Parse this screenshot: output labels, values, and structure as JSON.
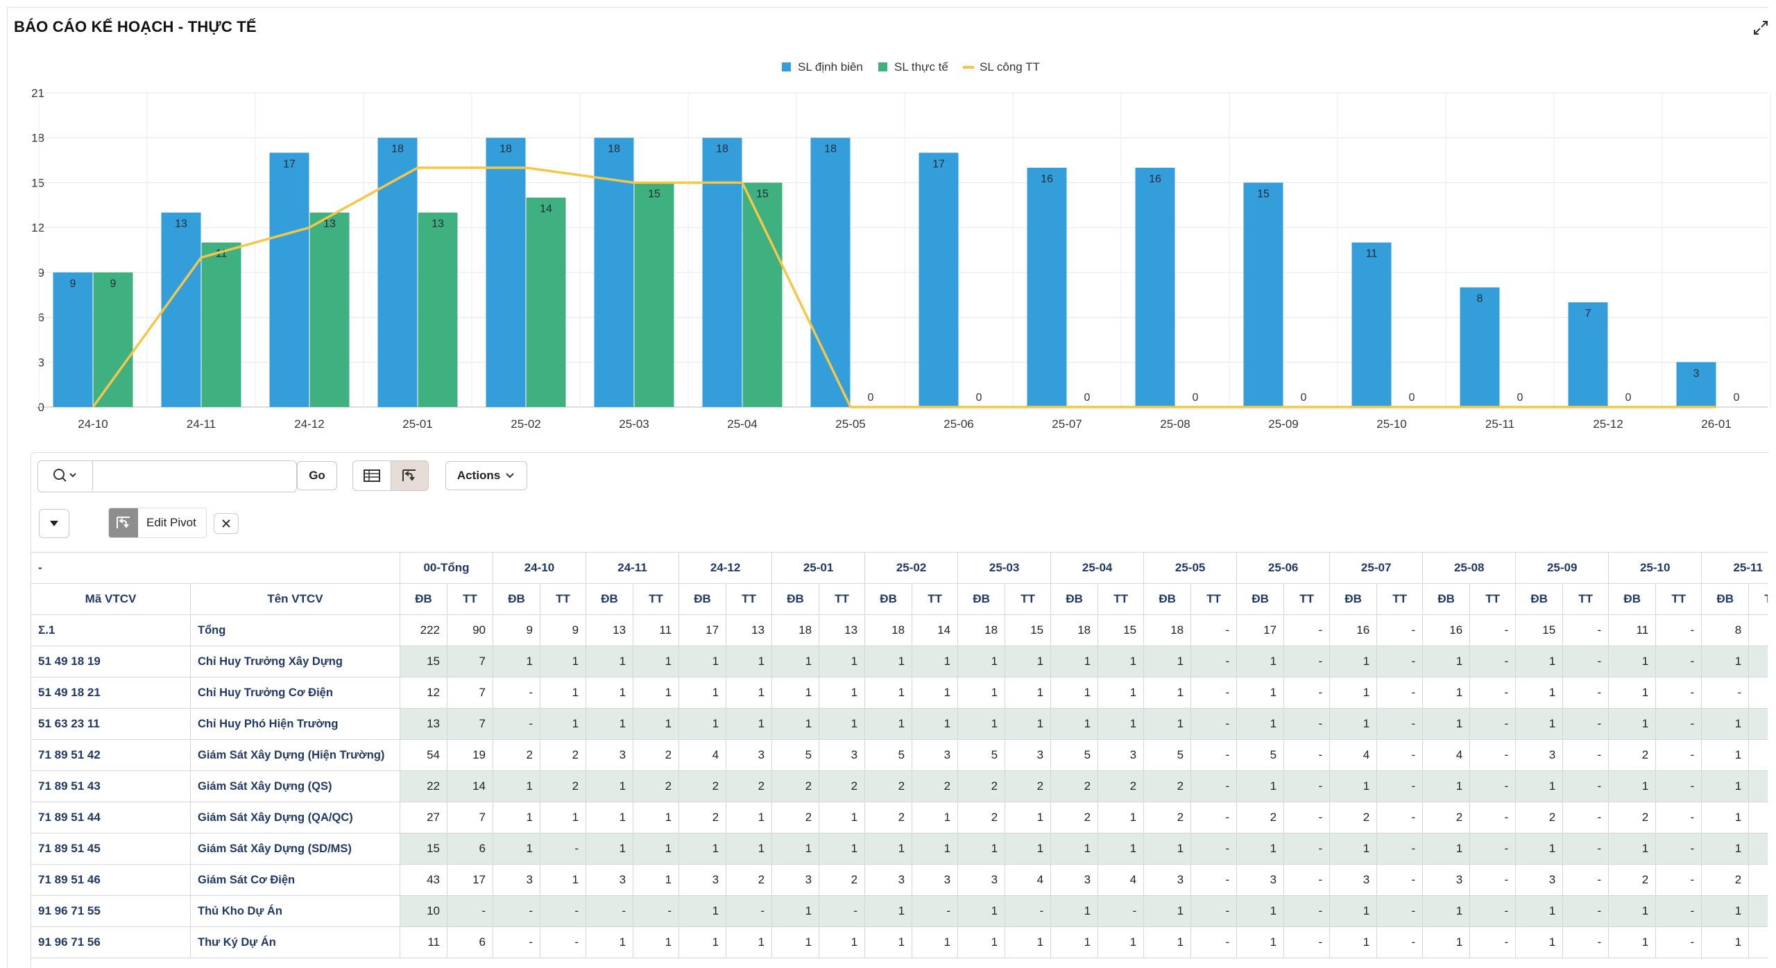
{
  "region": {
    "title": "BÁO CÁO KẾ HOẠCH - THỰC TẾ"
  },
  "colors": {
    "dinh_bien": "#349edb",
    "thuc_te": "#3fb07f",
    "cong_tt": "#f5c748",
    "header_text": "#203864",
    "row_shade": "#e3ebe7"
  },
  "chart_data": {
    "type": "bar",
    "categories": [
      "24-10",
      "24-11",
      "24-12",
      "25-01",
      "25-02",
      "25-03",
      "25-04",
      "25-05",
      "25-06",
      "25-07",
      "25-08",
      "25-09",
      "25-10",
      "25-11",
      "25-12",
      "26-01"
    ],
    "series": [
      {
        "name": "SL định biên",
        "type": "bar",
        "values": [
          9,
          13,
          17,
          18,
          18,
          18,
          18,
          18,
          17,
          16,
          16,
          15,
          11,
          8,
          7,
          3
        ]
      },
      {
        "name": "SL thực tế",
        "type": "bar",
        "values": [
          9,
          11,
          13,
          13,
          14,
          15,
          15,
          0,
          0,
          0,
          0,
          0,
          0,
          0,
          0,
          0
        ]
      },
      {
        "name": "SL công TT",
        "type": "line",
        "values": [
          0,
          10,
          12,
          16,
          16,
          15,
          15,
          0,
          0,
          0,
          0,
          0,
          0,
          0,
          0,
          0
        ]
      }
    ],
    "ylim": [
      0,
      21
    ],
    "yticks": [
      0,
      3,
      6,
      9,
      12,
      15,
      18,
      21
    ],
    "grid": true,
    "legend": "top-center"
  },
  "toolbar": {
    "search_icon": "search-icon",
    "search_placeholder": "",
    "go_label": "Go",
    "actions_label": "Actions",
    "pivot_chip_label": "Edit Pivot"
  },
  "table": {
    "corner_label": "-",
    "col_code": "Mã VTCV",
    "col_name": "Tên VTCV",
    "periods": [
      "00-Tổng",
      "24-10",
      "24-11",
      "24-12",
      "25-01",
      "25-02",
      "25-03",
      "25-04",
      "25-05",
      "25-06",
      "25-07",
      "25-08",
      "25-09",
      "25-10",
      "25-11"
    ],
    "sub_db": "ĐB",
    "sub_tt": "TT",
    "rows": [
      {
        "code": "Σ.1",
        "name": "Tổng",
        "values": [
          "222",
          "90",
          "9",
          "9",
          "13",
          "11",
          "17",
          "13",
          "18",
          "13",
          "18",
          "14",
          "18",
          "15",
          "18",
          "15",
          "18",
          "-",
          "17",
          "-",
          "16",
          "-",
          "16",
          "-",
          "15",
          "-",
          "11",
          "-",
          "8",
          ""
        ]
      },
      {
        "code": "51 49 18 19",
        "name": "Chỉ Huy Trưởng Xây Dựng",
        "values": [
          "15",
          "7",
          "1",
          "1",
          "1",
          "1",
          "1",
          "1",
          "1",
          "1",
          "1",
          "1",
          "1",
          "1",
          "1",
          "1",
          "1",
          "-",
          "1",
          "-",
          "1",
          "-",
          "1",
          "-",
          "1",
          "-",
          "1",
          "-",
          "1",
          ""
        ]
      },
      {
        "code": "51 49 18 21",
        "name": "Chỉ Huy Trưởng Cơ Điện",
        "values": [
          "12",
          "7",
          "-",
          "1",
          "1",
          "1",
          "1",
          "1",
          "1",
          "1",
          "1",
          "1",
          "1",
          "1",
          "1",
          "1",
          "1",
          "-",
          "1",
          "-",
          "1",
          "-",
          "1",
          "-",
          "1",
          "-",
          "1",
          "-",
          "-",
          ""
        ]
      },
      {
        "code": "51 63 23 11",
        "name": "Chỉ Huy Phó Hiện Trường",
        "values": [
          "13",
          "7",
          "-",
          "1",
          "1",
          "1",
          "1",
          "1",
          "1",
          "1",
          "1",
          "1",
          "1",
          "1",
          "1",
          "1",
          "1",
          "-",
          "1",
          "-",
          "1",
          "-",
          "1",
          "-",
          "1",
          "-",
          "1",
          "-",
          "1",
          ""
        ]
      },
      {
        "code": "71 89 51 42",
        "name": "Giám Sát Xây Dựng (Hiện Trường)",
        "values": [
          "54",
          "19",
          "2",
          "2",
          "3",
          "2",
          "4",
          "3",
          "5",
          "3",
          "5",
          "3",
          "5",
          "3",
          "5",
          "3",
          "5",
          "-",
          "5",
          "-",
          "4",
          "-",
          "4",
          "-",
          "3",
          "-",
          "2",
          "-",
          "1",
          ""
        ]
      },
      {
        "code": "71 89 51 43",
        "name": "Giám Sát Xây Dựng (QS)",
        "values": [
          "22",
          "14",
          "1",
          "2",
          "1",
          "2",
          "2",
          "2",
          "2",
          "2",
          "2",
          "2",
          "2",
          "2",
          "2",
          "2",
          "2",
          "-",
          "1",
          "-",
          "1",
          "-",
          "1",
          "-",
          "1",
          "-",
          "1",
          "-",
          "1",
          ""
        ]
      },
      {
        "code": "71 89 51 44",
        "name": "Giám Sát Xây Dựng (QA/QC)",
        "values": [
          "27",
          "7",
          "1",
          "1",
          "1",
          "1",
          "2",
          "1",
          "2",
          "1",
          "2",
          "1",
          "2",
          "1",
          "2",
          "1",
          "2",
          "-",
          "2",
          "-",
          "2",
          "-",
          "2",
          "-",
          "2",
          "-",
          "2",
          "-",
          "1",
          ""
        ]
      },
      {
        "code": "71 89 51 45",
        "name": "Giám Sát Xây Dựng (SD/MS)",
        "values": [
          "15",
          "6",
          "1",
          "-",
          "1",
          "1",
          "1",
          "1",
          "1",
          "1",
          "1",
          "1",
          "1",
          "1",
          "1",
          "1",
          "1",
          "-",
          "1",
          "-",
          "1",
          "-",
          "1",
          "-",
          "1",
          "-",
          "1",
          "-",
          "1",
          ""
        ]
      },
      {
        "code": "71 89 51 46",
        "name": "Giám Sát Cơ Điện",
        "values": [
          "43",
          "17",
          "3",
          "1",
          "3",
          "1",
          "3",
          "2",
          "3",
          "2",
          "3",
          "3",
          "3",
          "4",
          "3",
          "4",
          "3",
          "-",
          "3",
          "-",
          "3",
          "-",
          "3",
          "-",
          "3",
          "-",
          "2",
          "-",
          "2",
          ""
        ]
      },
      {
        "code": "91 96 71 55",
        "name": "Thủ Kho Dự Án",
        "values": [
          "10",
          "-",
          "-",
          "-",
          "-",
          "-",
          "1",
          "-",
          "1",
          "-",
          "1",
          "-",
          "1",
          "-",
          "1",
          "-",
          "1",
          "-",
          "1",
          "-",
          "1",
          "-",
          "1",
          "-",
          "1",
          "-",
          "1",
          "-",
          "1",
          ""
        ]
      },
      {
        "code": "91 96 71 56",
        "name": "Thư Ký Dự Án",
        "values": [
          "11",
          "6",
          "-",
          "-",
          "1",
          "1",
          "1",
          "1",
          "1",
          "1",
          "1",
          "1",
          "1",
          "1",
          "1",
          "1",
          "1",
          "-",
          "1",
          "-",
          "1",
          "-",
          "1",
          "-",
          "1",
          "-",
          "1",
          "-",
          "1",
          ""
        ]
      }
    ]
  }
}
